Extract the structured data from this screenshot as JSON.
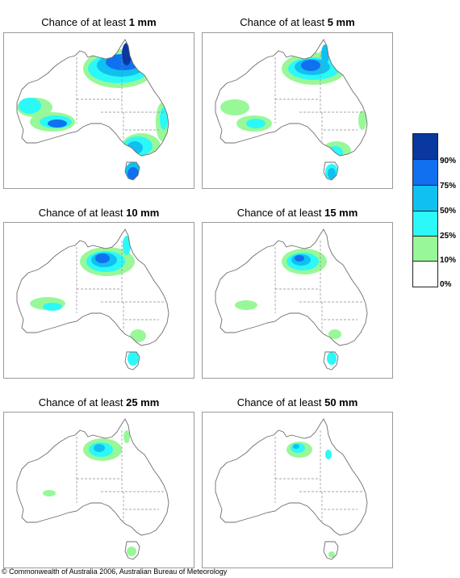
{
  "colors": {
    "p10": "#98f898",
    "p25": "#2cf8f8",
    "p50": "#10c0f0",
    "p75": "#1070f0",
    "p90": "#0838a0",
    "coast": "#6e6e6e",
    "border": "#9a9a9a"
  },
  "panels": [
    {
      "prefix": "Chance of at least",
      "amount": "1 mm",
      "level": 1
    },
    {
      "prefix": "Chance of at least",
      "amount": "5 mm",
      "level": 2
    },
    {
      "prefix": "Chance of at least",
      "amount": "10 mm",
      "level": 3
    },
    {
      "prefix": "Chance of at least",
      "amount": "15 mm",
      "level": 4
    },
    {
      "prefix": "Chance of at least",
      "amount": "25 mm",
      "level": 5
    },
    {
      "prefix": "Chance of at least",
      "amount": "50 mm",
      "level": 6
    }
  ],
  "legend": {
    "labels": [
      "90%",
      "75%",
      "50%",
      "25%",
      "10%",
      "0%"
    ]
  },
  "copyright": "© Commonwealth of Australia 2006, Australian Bureau of Meteorology"
}
